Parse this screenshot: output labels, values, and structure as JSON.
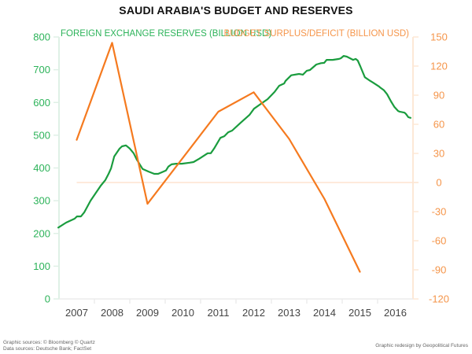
{
  "chart_data": {
    "type": "line",
    "title": "SAUDI ARABIA'S BUDGET AND RESERVES",
    "xlabel": "",
    "x_ticks": [
      "2007",
      "2008",
      "2009",
      "2010",
      "2011",
      "2012",
      "2013",
      "2014",
      "2015",
      "2016"
    ],
    "xlim": [
      2007,
      2017
    ],
    "left_axis": {
      "label": "FOREIGN EXCHANGE RESERVES (BILLION USD)",
      "ylim": [
        0,
        800
      ],
      "ticks": [
        0,
        100,
        200,
        300,
        400,
        500,
        600,
        700,
        800
      ],
      "color": "#2db35a"
    },
    "right_axis": {
      "label": "BUDGET SURPLUS/DEFICIT (BILLION USD)",
      "ylim": [
        -120,
        150
      ],
      "ticks": [
        -120,
        -90,
        -60,
        -30,
        0,
        30,
        60,
        90,
        120,
        150
      ],
      "color": "#f5954a"
    },
    "grid": false,
    "zero_line_right": true,
    "series": [
      {
        "name": "Foreign exchange reserves",
        "axis": "left",
        "color": "#1a9c3e",
        "points": [
          [
            2006.98,
            218
          ],
          [
            2007.2,
            233
          ],
          [
            2007.44,
            245
          ],
          [
            2007.51,
            252
          ],
          [
            2007.62,
            252
          ],
          [
            2007.71,
            264
          ],
          [
            2007.89,
            300
          ],
          [
            2008.18,
            346
          ],
          [
            2008.31,
            363
          ],
          [
            2008.4,
            382
          ],
          [
            2008.47,
            399
          ],
          [
            2008.56,
            435
          ],
          [
            2008.71,
            459
          ],
          [
            2008.78,
            466
          ],
          [
            2008.89,
            469
          ],
          [
            2009.0,
            459
          ],
          [
            2009.11,
            445
          ],
          [
            2009.2,
            425
          ],
          [
            2009.36,
            397
          ],
          [
            2009.53,
            389
          ],
          [
            2009.69,
            382
          ],
          [
            2009.8,
            382
          ],
          [
            2009.91,
            387
          ],
          [
            2010.02,
            392
          ],
          [
            2010.09,
            404
          ],
          [
            2010.18,
            411
          ],
          [
            2010.31,
            413
          ],
          [
            2010.47,
            413
          ],
          [
            2010.69,
            416
          ],
          [
            2010.8,
            418
          ],
          [
            2010.96,
            428
          ],
          [
            2011.13,
            440
          ],
          [
            2011.2,
            445
          ],
          [
            2011.29,
            445
          ],
          [
            2011.38,
            459
          ],
          [
            2011.56,
            492
          ],
          [
            2011.67,
            497
          ],
          [
            2011.78,
            509
          ],
          [
            2011.89,
            514
          ],
          [
            2012.11,
            536
          ],
          [
            2012.38,
            562
          ],
          [
            2012.51,
            581
          ],
          [
            2012.73,
            598
          ],
          [
            2012.89,
            610
          ],
          [
            2013.09,
            632
          ],
          [
            2013.22,
            651
          ],
          [
            2013.36,
            658
          ],
          [
            2013.4,
            666
          ],
          [
            2013.56,
            683
          ],
          [
            2013.78,
            687
          ],
          [
            2013.89,
            685
          ],
          [
            2014.0,
            697
          ],
          [
            2014.09,
            699
          ],
          [
            2014.27,
            716
          ],
          [
            2014.4,
            720
          ],
          [
            2014.49,
            721
          ],
          [
            2014.56,
            730
          ],
          [
            2014.73,
            730
          ],
          [
            2014.91,
            733
          ],
          [
            2014.96,
            735
          ],
          [
            2015.04,
            742
          ],
          [
            2015.13,
            740
          ],
          [
            2015.31,
            730
          ],
          [
            2015.38,
            733
          ],
          [
            2015.44,
            728
          ],
          [
            2015.51,
            711
          ],
          [
            2015.64,
            677
          ],
          [
            2015.76,
            668
          ],
          [
            2015.87,
            661
          ],
          [
            2016.04,
            649
          ],
          [
            2016.07,
            646
          ],
          [
            2016.18,
            637
          ],
          [
            2016.27,
            625
          ],
          [
            2016.38,
            603
          ],
          [
            2016.47,
            587
          ],
          [
            2016.58,
            574
          ],
          [
            2016.62,
            572
          ],
          [
            2016.76,
            569
          ],
          [
            2016.8,
            565
          ],
          [
            2016.87,
            555
          ],
          [
            2016.93,
            553
          ]
        ]
      },
      {
        "name": "Budget surplus/deficit",
        "axis": "right",
        "color": "#f57a1f",
        "points": [
          [
            2007.5,
            44
          ],
          [
            2008.5,
            144
          ],
          [
            2009.5,
            -22
          ],
          [
            2011.5,
            73
          ],
          [
            2012.5,
            93
          ],
          [
            2013.5,
            45
          ],
          [
            2014.5,
            -17
          ],
          [
            2015.5,
            -92
          ]
        ]
      }
    ]
  },
  "footer": {
    "sources_line1": "Graphic sources: © Bloomberg © Quartz",
    "sources_line2": "Data sources: Deutsche Bank; FactSet",
    "credit": "Graphic redesign by Geopolitical Futures"
  }
}
